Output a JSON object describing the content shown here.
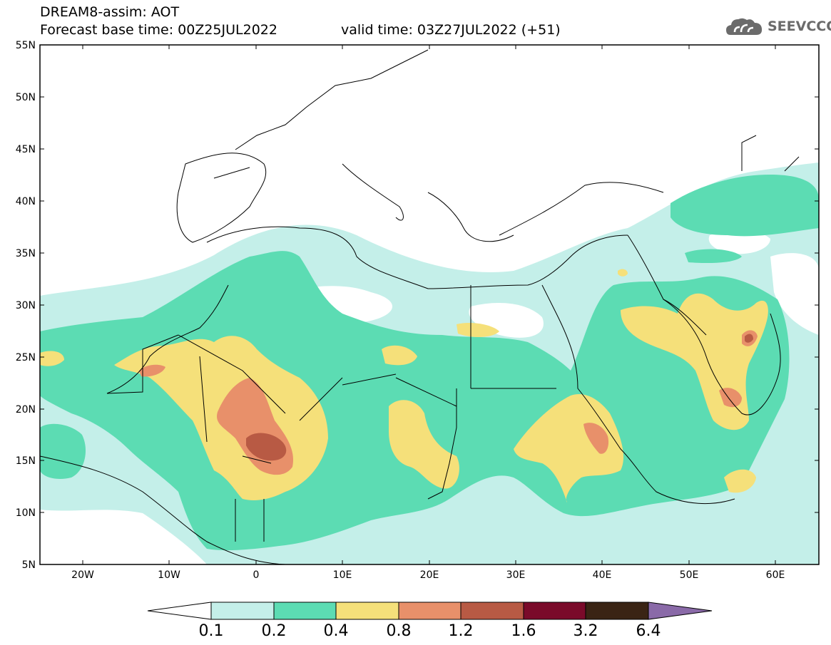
{
  "header": {
    "line1": "DREAM8-assim: AOT",
    "line2_base": "Forecast base time: 00Z25JUL2022",
    "line2_valid": "valid time: 03Z27JUL2022 (+51)"
  },
  "logo": {
    "text": "SEEVCCC",
    "icon": "cloud-icon"
  },
  "map": {
    "lon_range": [
      -25,
      65
    ],
    "lat_range": [
      5,
      55
    ],
    "lat_ticks": [
      "55N",
      "50N",
      "45N",
      "40N",
      "35N",
      "30N",
      "25N",
      "20N",
      "15N",
      "10N",
      "5N"
    ],
    "lon_ticks": [
      "20W",
      "10W",
      "0",
      "10E",
      "20E",
      "30E",
      "40E",
      "50E",
      "60E"
    ]
  },
  "colorbar": {
    "labels": [
      "0.1",
      "0.2",
      "0.4",
      "0.8",
      "1.2",
      "1.6",
      "3.2",
      "6.4"
    ],
    "colors": [
      "#ffffff",
      "#c4efe9",
      "#5cdcb3",
      "#f5e07a",
      "#e8906a",
      "#b85a44",
      "#7a0a2a",
      "#3a2414",
      "#8a6aa8"
    ]
  }
}
